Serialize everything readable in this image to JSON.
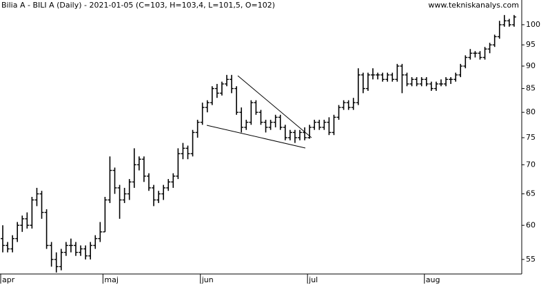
{
  "chart_data": {
    "type": "ohlc",
    "title": "Bilia A - BILI A (Daily) - 2021-01-05 (C=103, H=103,4, L=101,5, O=102)",
    "source": "www.tekniskanalys.com",
    "log_scale": true,
    "color": "#000000",
    "ylim": [
      53,
      106.5
    ],
    "yticks": [
      55,
      60,
      65,
      70,
      75,
      80,
      85,
      90,
      95,
      100
    ],
    "categories": [
      "apr",
      null,
      null,
      null,
      null,
      null,
      null,
      null,
      null,
      null,
      null,
      null,
      null,
      null,
      null,
      null,
      null,
      null,
      null,
      null,
      null,
      "maj",
      null,
      null,
      null,
      null,
      null,
      null,
      null,
      null,
      null,
      null,
      null,
      null,
      null,
      null,
      null,
      null,
      null,
      null,
      null,
      "jun",
      null,
      null,
      null,
      null,
      null,
      null,
      null,
      null,
      null,
      null,
      null,
      null,
      null,
      null,
      null,
      null,
      null,
      null,
      null,
      null,
      null,
      "jul",
      null,
      null,
      null,
      null,
      null,
      null,
      null,
      null,
      null,
      null,
      null,
      null,
      null,
      null,
      null,
      null,
      null,
      null,
      null,
      null,
      null,
      null,
      null,
      "aug",
      null,
      null,
      null,
      null,
      null,
      null,
      null,
      null,
      null,
      null,
      null,
      null,
      null,
      null,
      null,
      null,
      null,
      null
    ],
    "ohlc": [
      [
        58,
        60,
        56,
        57
      ],
      [
        57,
        57.5,
        56,
        56.5
      ],
      [
        56.5,
        58.5,
        56,
        58
      ],
      [
        58,
        60.5,
        57.5,
        60
      ],
      [
        60,
        61.5,
        59,
        61
      ],
      [
        61,
        62,
        59.5,
        60
      ],
      [
        60,
        64.5,
        59.5,
        64
      ],
      [
        64,
        66,
        63,
        65
      ],
      [
        65,
        65.5,
        61,
        62
      ],
      [
        62,
        62.5,
        56.5,
        57
      ],
      [
        57,
        57.5,
        54,
        55
      ],
      [
        55,
        56,
        53.2,
        54
      ],
      [
        54,
        56.5,
        53.5,
        56
      ],
      [
        56,
        57.5,
        55.5,
        57
      ],
      [
        57,
        58,
        56,
        57
      ],
      [
        57,
        57.5,
        55.5,
        56
      ],
      [
        56,
        57,
        55.5,
        56.5
      ],
      [
        56.5,
        57,
        55,
        55.5
      ],
      [
        55.5,
        57.5,
        55,
        57
      ],
      [
        57,
        58.5,
        56.5,
        58
      ],
      [
        58,
        60.5,
        57.5,
        59
      ],
      [
        59,
        64.5,
        59,
        64
      ],
      [
        64,
        71.5,
        63.5,
        69
      ],
      [
        69,
        69.5,
        65,
        66
      ],
      [
        66,
        66.5,
        61,
        64
      ],
      [
        64,
        66,
        63.5,
        65
      ],
      [
        65,
        67.5,
        64,
        67
      ],
      [
        67,
        73,
        66,
        70
      ],
      [
        70,
        71.5,
        69,
        71
      ],
      [
        71,
        71.5,
        67,
        68
      ],
      [
        68,
        68.5,
        65.5,
        66
      ],
      [
        66,
        66.5,
        63,
        64
      ],
      [
        64,
        65.5,
        63.5,
        65
      ],
      [
        65,
        66.5,
        64,
        66
      ],
      [
        66,
        67.5,
        65.5,
        67
      ],
      [
        67,
        68.5,
        66,
        68
      ],
      [
        68,
        73,
        67.5,
        72
      ],
      [
        72,
        74,
        71,
        73
      ],
      [
        73,
        73.5,
        71,
        72
      ],
      [
        72,
        76.5,
        71.5,
        76
      ],
      [
        76,
        78.5,
        75,
        78
      ],
      [
        78,
        82,
        77.5,
        81
      ],
      [
        81,
        82.5,
        80,
        82
      ],
      [
        82,
        85.5,
        81.5,
        85
      ],
      [
        85,
        86,
        83,
        84
      ],
      [
        84,
        86.5,
        83.5,
        86
      ],
      [
        86,
        88,
        85.5,
        87
      ],
      [
        87,
        88,
        84,
        85
      ],
      [
        85,
        85.5,
        79.5,
        80
      ],
      [
        80,
        81,
        76,
        77
      ],
      [
        77,
        78.5,
        76.5,
        78
      ],
      [
        78,
        82.5,
        77.5,
        82
      ],
      [
        82,
        82.5,
        79.5,
        80
      ],
      [
        80,
        80.5,
        77.5,
        78
      ],
      [
        78,
        78.5,
        76,
        77
      ],
      [
        77,
        78.5,
        76.5,
        78
      ],
      [
        78,
        79.5,
        77,
        79
      ],
      [
        79,
        79.5,
        76.5,
        77
      ],
      [
        77,
        77.5,
        74.5,
        75
      ],
      [
        75,
        76.5,
        74.5,
        76
      ],
      [
        76,
        76.5,
        74,
        75
      ],
      [
        75,
        76.5,
        74.5,
        76
      ],
      [
        76,
        77,
        74.5,
        75
      ],
      [
        75,
        77.5,
        74.8,
        77
      ],
      [
        77,
        78.5,
        76.5,
        78
      ],
      [
        78,
        78.5,
        76.5,
        77
      ],
      [
        77,
        78.5,
        76.5,
        78
      ],
      [
        78,
        79,
        75.5,
        76
      ],
      [
        76,
        79.5,
        75.5,
        79
      ],
      [
        79,
        81.5,
        78.5,
        81
      ],
      [
        81,
        82.5,
        80.5,
        82
      ],
      [
        82,
        82.5,
        80.5,
        81
      ],
      [
        81,
        83,
        80.5,
        82
      ],
      [
        82,
        89.5,
        81.5,
        88
      ],
      [
        88,
        88.5,
        84,
        85
      ],
      [
        85,
        88.5,
        84.5,
        88
      ],
      [
        88,
        89.5,
        87,
        88
      ],
      [
        88,
        88.5,
        87,
        88
      ],
      [
        88,
        88.5,
        86.5,
        87
      ],
      [
        87,
        88.5,
        86.5,
        88
      ],
      [
        88,
        88.5,
        86.5,
        87
      ],
      [
        87,
        90.5,
        86.5,
        90
      ],
      [
        90,
        90.5,
        84,
        88
      ],
      [
        88,
        88.5,
        85.5,
        86
      ],
      [
        86,
        87.5,
        85.5,
        87
      ],
      [
        87,
        87.5,
        85.5,
        86
      ],
      [
        86,
        87.5,
        85.5,
        87
      ],
      [
        87,
        87.5,
        85.5,
        86
      ],
      [
        86,
        86.5,
        84.5,
        85
      ],
      [
        85,
        86.5,
        84.5,
        86
      ],
      [
        86,
        87,
        85.5,
        86
      ],
      [
        86,
        87.5,
        85.5,
        87
      ],
      [
        87,
        87.5,
        86,
        87
      ],
      [
        87,
        88.5,
        86.5,
        88
      ],
      [
        88,
        90.5,
        87.5,
        90
      ],
      [
        90,
        92.5,
        89.5,
        92
      ],
      [
        92,
        94,
        91.5,
        93
      ],
      [
        93,
        93.5,
        92,
        93
      ],
      [
        93,
        93.5,
        91.5,
        92
      ],
      [
        92,
        94.5,
        91.5,
        94
      ],
      [
        94,
        95.5,
        93,
        95
      ],
      [
        95,
        97.5,
        94.5,
        97
      ],
      [
        97,
        101,
        96.5,
        100
      ],
      [
        100,
        102.5,
        99.5,
        101
      ],
      [
        101,
        101.5,
        99.5,
        100
      ],
      [
        100,
        102.5,
        99.5,
        102
      ]
    ]
  }
}
